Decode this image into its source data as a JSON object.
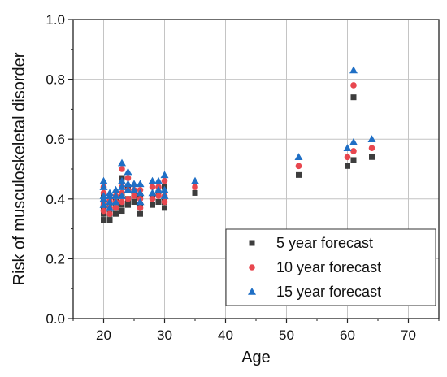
{
  "chart_data": {
    "type": "scatter",
    "title": "",
    "xlabel": "Age",
    "ylabel": "Risk of musculoskeletal disorder",
    "xlim": [
      15,
      75
    ],
    "ylim": [
      0.0,
      1.0
    ],
    "xticks": [
      20,
      30,
      40,
      50,
      60,
      70
    ],
    "yticks": [
      0.0,
      0.2,
      0.4,
      0.6,
      0.8,
      1.0
    ],
    "xtick_labels": [
      "20",
      "30",
      "40",
      "50",
      "60",
      "70"
    ],
    "ytick_labels": [
      "0.0",
      "0.2",
      "0.4",
      "0.6",
      "0.8",
      "1.0"
    ],
    "grid": true,
    "legend_position": "bottom-right",
    "series": [
      {
        "name": "5 year forecast",
        "marker": "square",
        "color": "#3d3d3d",
        "x": [
          20,
          20,
          20,
          20,
          20,
          21,
          21,
          21,
          21,
          22,
          22,
          22,
          23,
          23,
          23,
          23,
          24,
          24,
          24,
          25,
          25,
          26,
          26,
          26,
          28,
          28,
          29,
          29,
          30,
          30,
          30,
          35,
          52,
          60,
          61,
          61,
          64
        ],
        "y": [
          0.33,
          0.35,
          0.37,
          0.39,
          0.41,
          0.33,
          0.35,
          0.37,
          0.39,
          0.35,
          0.37,
          0.39,
          0.36,
          0.38,
          0.41,
          0.47,
          0.38,
          0.4,
          0.44,
          0.39,
          0.41,
          0.35,
          0.38,
          0.41,
          0.38,
          0.41,
          0.39,
          0.42,
          0.37,
          0.39,
          0.44,
          0.42,
          0.48,
          0.51,
          0.53,
          0.74,
          0.54
        ]
      },
      {
        "name": "10 year forecast",
        "marker": "circle",
        "color": "#e8474f",
        "x": [
          20,
          20,
          20,
          20,
          20,
          21,
          21,
          21,
          21,
          22,
          22,
          22,
          23,
          23,
          23,
          23,
          24,
          24,
          24,
          25,
          25,
          26,
          26,
          26,
          28,
          28,
          29,
          29,
          30,
          30,
          30,
          35,
          52,
          60,
          61,
          61,
          64
        ],
        "y": [
          0.36,
          0.38,
          0.39,
          0.42,
          0.44,
          0.35,
          0.37,
          0.39,
          0.4,
          0.37,
          0.39,
          0.41,
          0.39,
          0.42,
          0.44,
          0.5,
          0.4,
          0.43,
          0.47,
          0.41,
          0.43,
          0.37,
          0.4,
          0.43,
          0.4,
          0.44,
          0.41,
          0.44,
          0.39,
          0.41,
          0.46,
          0.44,
          0.51,
          0.54,
          0.56,
          0.78,
          0.57
        ]
      },
      {
        "name": "15 year forecast",
        "marker": "triangle",
        "color": "#1f6fc5",
        "x": [
          20,
          20,
          20,
          20,
          20,
          21,
          21,
          21,
          21,
          22,
          22,
          22,
          23,
          23,
          23,
          23,
          24,
          24,
          24,
          25,
          25,
          26,
          26,
          26,
          28,
          28,
          29,
          29,
          30,
          30,
          30,
          35,
          52,
          60,
          61,
          61,
          64
        ],
        "y": [
          0.38,
          0.4,
          0.41,
          0.44,
          0.46,
          0.37,
          0.39,
          0.41,
          0.42,
          0.39,
          0.41,
          0.43,
          0.41,
          0.44,
          0.46,
          0.52,
          0.43,
          0.45,
          0.49,
          0.43,
          0.45,
          0.39,
          0.42,
          0.45,
          0.42,
          0.46,
          0.43,
          0.46,
          0.41,
          0.43,
          0.48,
          0.46,
          0.54,
          0.57,
          0.59,
          0.83,
          0.6
        ]
      }
    ]
  }
}
